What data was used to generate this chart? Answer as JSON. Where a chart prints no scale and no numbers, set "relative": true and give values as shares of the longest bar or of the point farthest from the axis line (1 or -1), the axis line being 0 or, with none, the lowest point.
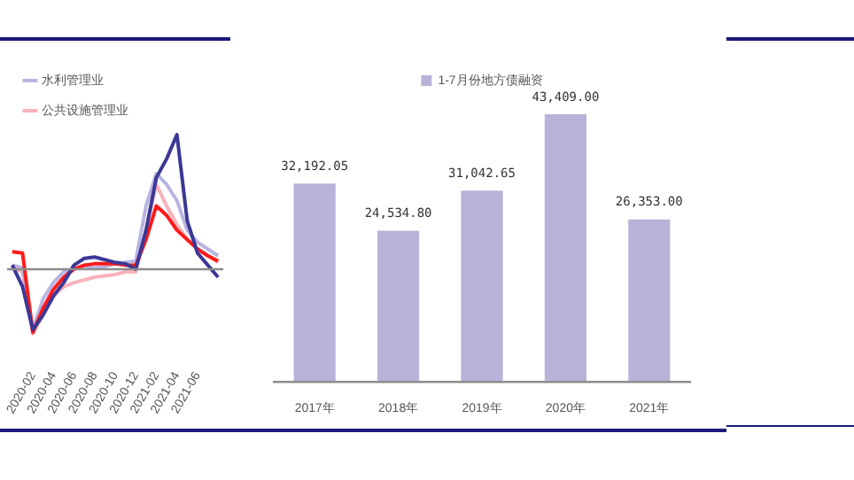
{
  "chart_data": [
    {
      "type": "line",
      "relative": true,
      "legend": "top left",
      "marker": "none",
      "categories": [
        null,
        null,
        "2020-02",
        null,
        "2020-04",
        null,
        "2020-06",
        null,
        "2020-08",
        null,
        "2020-10",
        null,
        "2020-12",
        null,
        "2021-02",
        null,
        "2021-04",
        null,
        "2021-06",
        null,
        null
      ],
      "series": [
        {
          "color": "#3c3896",
          "values": [
            0.03,
            -0.13,
            -0.45,
            -0.34,
            -0.2,
            -0.1,
            0.03,
            0.08,
            0.09,
            0.07,
            0.05,
            0.04,
            0,
            0.29,
            0.68,
            0.82,
            1,
            0.36,
            0.12,
            0.03,
            -0.06
          ]
        },
        {
          "color": "#ff1a1a",
          "values": [
            0.13,
            0.12,
            -0.47,
            -0.29,
            -0.15,
            -0.06,
            0,
            0.03,
            0.04,
            0.04,
            0.04,
            0.03,
            0.03,
            0.22,
            0.47,
            0.4,
            0.29,
            0.22,
            0.15,
            0.1,
            0.06
          ]
        },
        {
          "name": "水利管理业",
          "color": "#b8b4e2",
          "values": [
            0.03,
            0.01,
            -0.45,
            -0.22,
            -0.1,
            -0.02,
            0,
            0.02,
            0.01,
            0.02,
            0.04,
            0.05,
            0.06,
            0.47,
            0.71,
            0.63,
            0.51,
            0.29,
            0.2,
            0.15,
            0.1
          ]
        },
        {
          "name": "公共设施管理业",
          "color": "#f7b3ba",
          "values": [
            0.01,
            -0.02,
            -0.48,
            -0.34,
            -0.2,
            -0.13,
            -0.1,
            -0.08,
            -0.06,
            -0.05,
            -0.04,
            -0.02,
            -0.02,
            0.29,
            0.63,
            0.47,
            0.33,
            0.22,
            0.15,
            0.1,
            0.05
          ]
        }
      ]
    },
    {
      "type": "bar",
      "legend": "top",
      "tick_labels": "x",
      "categories": [
        "2017年",
        "2018年",
        "2019年",
        "2020年",
        "2021年"
      ],
      "series": [
        {
          "name": "1-7月份地方债融资",
          "color": "#b8b3d8",
          "values": [
            32192.05,
            24534.8,
            31042.65,
            43409,
            26353
          ],
          "value_labels": [
            "32,192.05",
            "24,534.80",
            "31,042.65",
            "43,409.00",
            "26,353.00"
          ]
        }
      ]
    }
  ]
}
